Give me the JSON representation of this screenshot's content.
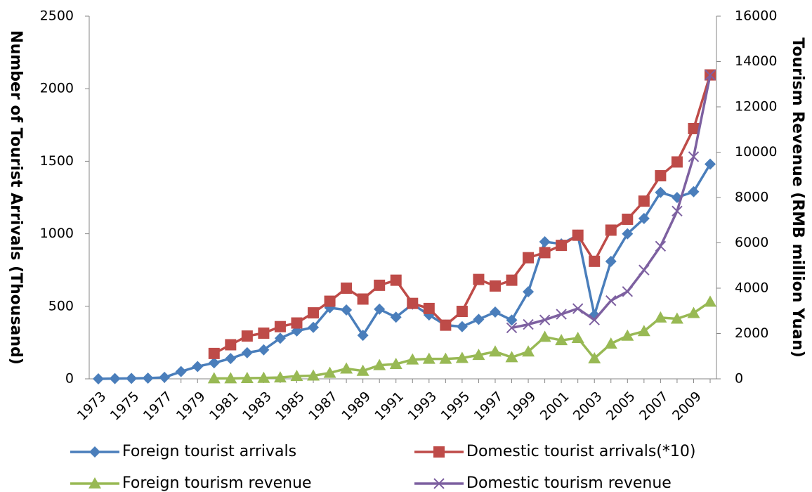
{
  "chart_data": {
    "type": "line",
    "y_label": "Number of Tourist Arrivals (Thousand)",
    "y2_label": "Tourism Revenue (RMB million Yuan)",
    "categories": [
      "1973",
      null,
      "1975",
      null,
      "1977",
      null,
      "1979",
      null,
      "1981",
      null,
      "1983",
      null,
      "1985",
      null,
      "1987",
      null,
      "1989",
      null,
      "1991",
      null,
      "1993",
      null,
      "1995",
      null,
      "1997",
      null,
      "1999",
      null,
      "2001",
      null,
      "2003",
      null,
      "2005",
      null,
      "2007",
      null,
      "2009",
      null
    ],
    "series": [
      {
        "name": "Foreign tourist arrivals",
        "color": "#4a7ebb",
        "marker": "diamond",
        "axis": "y",
        "values": [
          0,
          2,
          3,
          5,
          10,
          50,
          85,
          110,
          140,
          180,
          200,
          280,
          330,
          355,
          490,
          475,
          300,
          480,
          425,
          515,
          440,
          370,
          360,
          410,
          460,
          405,
          600,
          945,
          930,
          990,
          440,
          810,
          1000,
          1105,
          1285,
          1250,
          1290,
          1480
        ]
      },
      {
        "name": "Domestic tourist arrivals(*10)",
        "color": "#be4b48",
        "marker": "square",
        "axis": "y",
        "values": [
          null,
          null,
          null,
          null,
          null,
          null,
          null,
          175,
          235,
          295,
          315,
          360,
          385,
          455,
          535,
          625,
          550,
          645,
          680,
          520,
          485,
          370,
          465,
          685,
          640,
          680,
          835,
          870,
          920,
          990,
          810,
          1025,
          1100,
          1225,
          1400,
          1495,
          1725,
          2095
        ]
      },
      {
        "name": "Foreign tourism revenue",
        "color": "#98b954",
        "marker": "triangle",
        "axis": "y2",
        "values": [
          null,
          null,
          null,
          null,
          null,
          null,
          null,
          20,
          20,
          30,
          40,
          60,
          120,
          140,
          260,
          450,
          350,
          600,
          650,
          850,
          880,
          880,
          920,
          1050,
          1200,
          950,
          1200,
          1850,
          1700,
          1800,
          900,
          1550,
          1900,
          2100,
          2700,
          2650,
          2900,
          3400
        ]
      },
      {
        "name": "Domestic tourism revenue",
        "color": "#7d60a0",
        "marker": "x",
        "axis": "y2",
        "values": [
          null,
          null,
          null,
          null,
          null,
          null,
          null,
          null,
          null,
          null,
          null,
          null,
          null,
          null,
          null,
          null,
          null,
          null,
          null,
          null,
          null,
          null,
          null,
          null,
          null,
          2250,
          2400,
          2600,
          2850,
          3100,
          2600,
          3450,
          3850,
          4800,
          5850,
          7400,
          9800,
          13400
        ]
      }
    ],
    "ylim": [
      0,
      2500
    ],
    "yticks": [
      0,
      500,
      1000,
      1500,
      2000,
      2500
    ],
    "y2lim": [
      0,
      16000
    ],
    "y2ticks": [
      0,
      2000,
      4000,
      6000,
      8000,
      10000,
      12000,
      14000,
      16000
    ],
    "grid": false,
    "legend": "bottom"
  }
}
